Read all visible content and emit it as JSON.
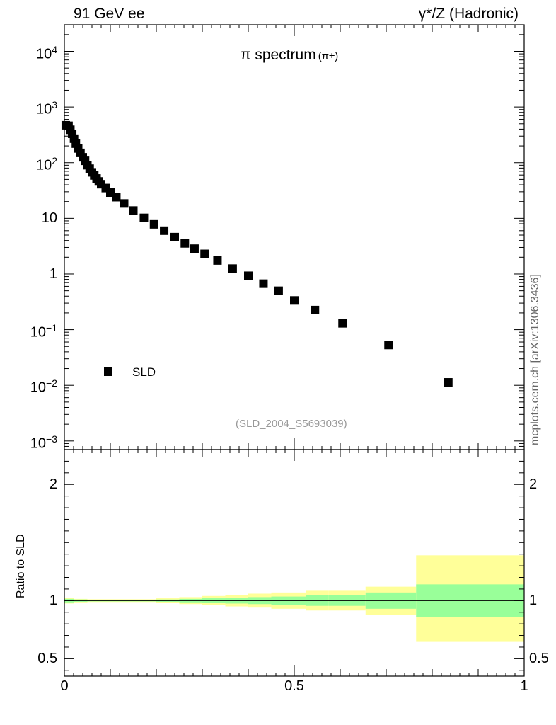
{
  "header": {
    "left": "91 GeV ee",
    "right": "γ*/Z (Hadronic)"
  },
  "title": {
    "main": "π spectrum",
    "sub": "(π±)"
  },
  "analysis_id": "(SLD_2004_S5693039)",
  "watermark": "mcplots.cern.ch [arXiv:1306.3436]",
  "ratio_ylabel": "Ratio to SLD",
  "legend": {
    "label": "SLD",
    "placement": "bottom-left"
  },
  "colors": {
    "marker": "#000000",
    "band_inner": "#99ff99",
    "band_outer": "#ffff99",
    "ref_line": "#000000"
  },
  "chart_data": [
    {
      "type": "scatter",
      "scale": "log",
      "xlim": [
        0,
        1
      ],
      "ylim": [
        0.0007,
        30000
      ],
      "ytick_labels": [
        {
          "value": 0.001,
          "base": "10",
          "exp": "−3"
        },
        {
          "value": 0.01,
          "base": "10",
          "exp": "−2"
        },
        {
          "value": 0.1,
          "base": "10",
          "exp": "−1"
        },
        {
          "value": 1,
          "base": "1",
          "exp": ""
        },
        {
          "value": 10,
          "base": "10",
          "exp": ""
        },
        {
          "value": 100,
          "base": "10",
          "exp": "2"
        },
        {
          "value": 1000,
          "base": "10",
          "exp": "3"
        },
        {
          "value": 10000,
          "base": "10",
          "exp": "4"
        }
      ],
      "series": [
        {
          "name": "SLD",
          "x": [
            0.003,
            0.009,
            0.013,
            0.017,
            0.021,
            0.025,
            0.03,
            0.035,
            0.04,
            0.045,
            0.05,
            0.055,
            0.06,
            0.065,
            0.07,
            0.075,
            0.08,
            0.09,
            0.1,
            0.113,
            0.13,
            0.15,
            0.173,
            0.195,
            0.217,
            0.24,
            0.262,
            0.283,
            0.305,
            0.333,
            0.366,
            0.4,
            0.433,
            0.466,
            0.5,
            0.545,
            0.605,
            0.705,
            0.835
          ],
          "values": [
            470,
            460,
            390,
            330,
            270,
            220,
            180,
            150,
            125,
            108,
            90,
            78,
            67,
            59,
            52,
            46,
            41,
            35,
            29,
            24,
            18.5,
            13.8,
            10.2,
            7.8,
            6.0,
            4.6,
            3.55,
            2.85,
            2.3,
            1.75,
            1.25,
            0.93,
            0.67,
            0.5,
            0.335,
            0.225,
            0.13,
            0.053,
            0.0113
          ]
        }
      ]
    },
    {
      "type": "area",
      "xlim": [
        0,
        1
      ],
      "ylim": [
        0.35,
        2.3
      ],
      "yticks": [
        0.5,
        1,
        2
      ],
      "ytick_labels": [
        "0.5",
        "1",
        "2"
      ],
      "xticks": [
        0,
        0.5,
        1
      ],
      "xtick_labels": [
        "0",
        "0.5",
        "1"
      ],
      "reference": 1,
      "x_edges": [
        0,
        0.02,
        0.05,
        0.1,
        0.2,
        0.25,
        0.3,
        0.35,
        0.4,
        0.45,
        0.525,
        0.575,
        0.655,
        0.765,
        1.0
      ],
      "inner_band": {
        "lower": [
          0.985,
          0.99,
          0.993,
          0.993,
          0.99,
          0.985,
          0.98,
          0.975,
          0.97,
          0.965,
          0.955,
          0.955,
          0.93,
          0.86
        ],
        "upper": [
          1.015,
          1.01,
          1.007,
          1.007,
          1.01,
          1.015,
          1.02,
          1.025,
          1.03,
          1.035,
          1.045,
          1.045,
          1.07,
          1.14
        ]
      },
      "outer_band": {
        "lower": [
          0.975,
          0.985,
          0.988,
          0.988,
          0.98,
          0.97,
          0.96,
          0.95,
          0.94,
          0.93,
          0.915,
          0.915,
          0.875,
          0.645
        ],
        "upper": [
          1.025,
          1.015,
          1.012,
          1.012,
          1.02,
          1.03,
          1.04,
          1.05,
          1.06,
          1.07,
          1.085,
          1.085,
          1.12,
          1.39
        ]
      }
    }
  ]
}
